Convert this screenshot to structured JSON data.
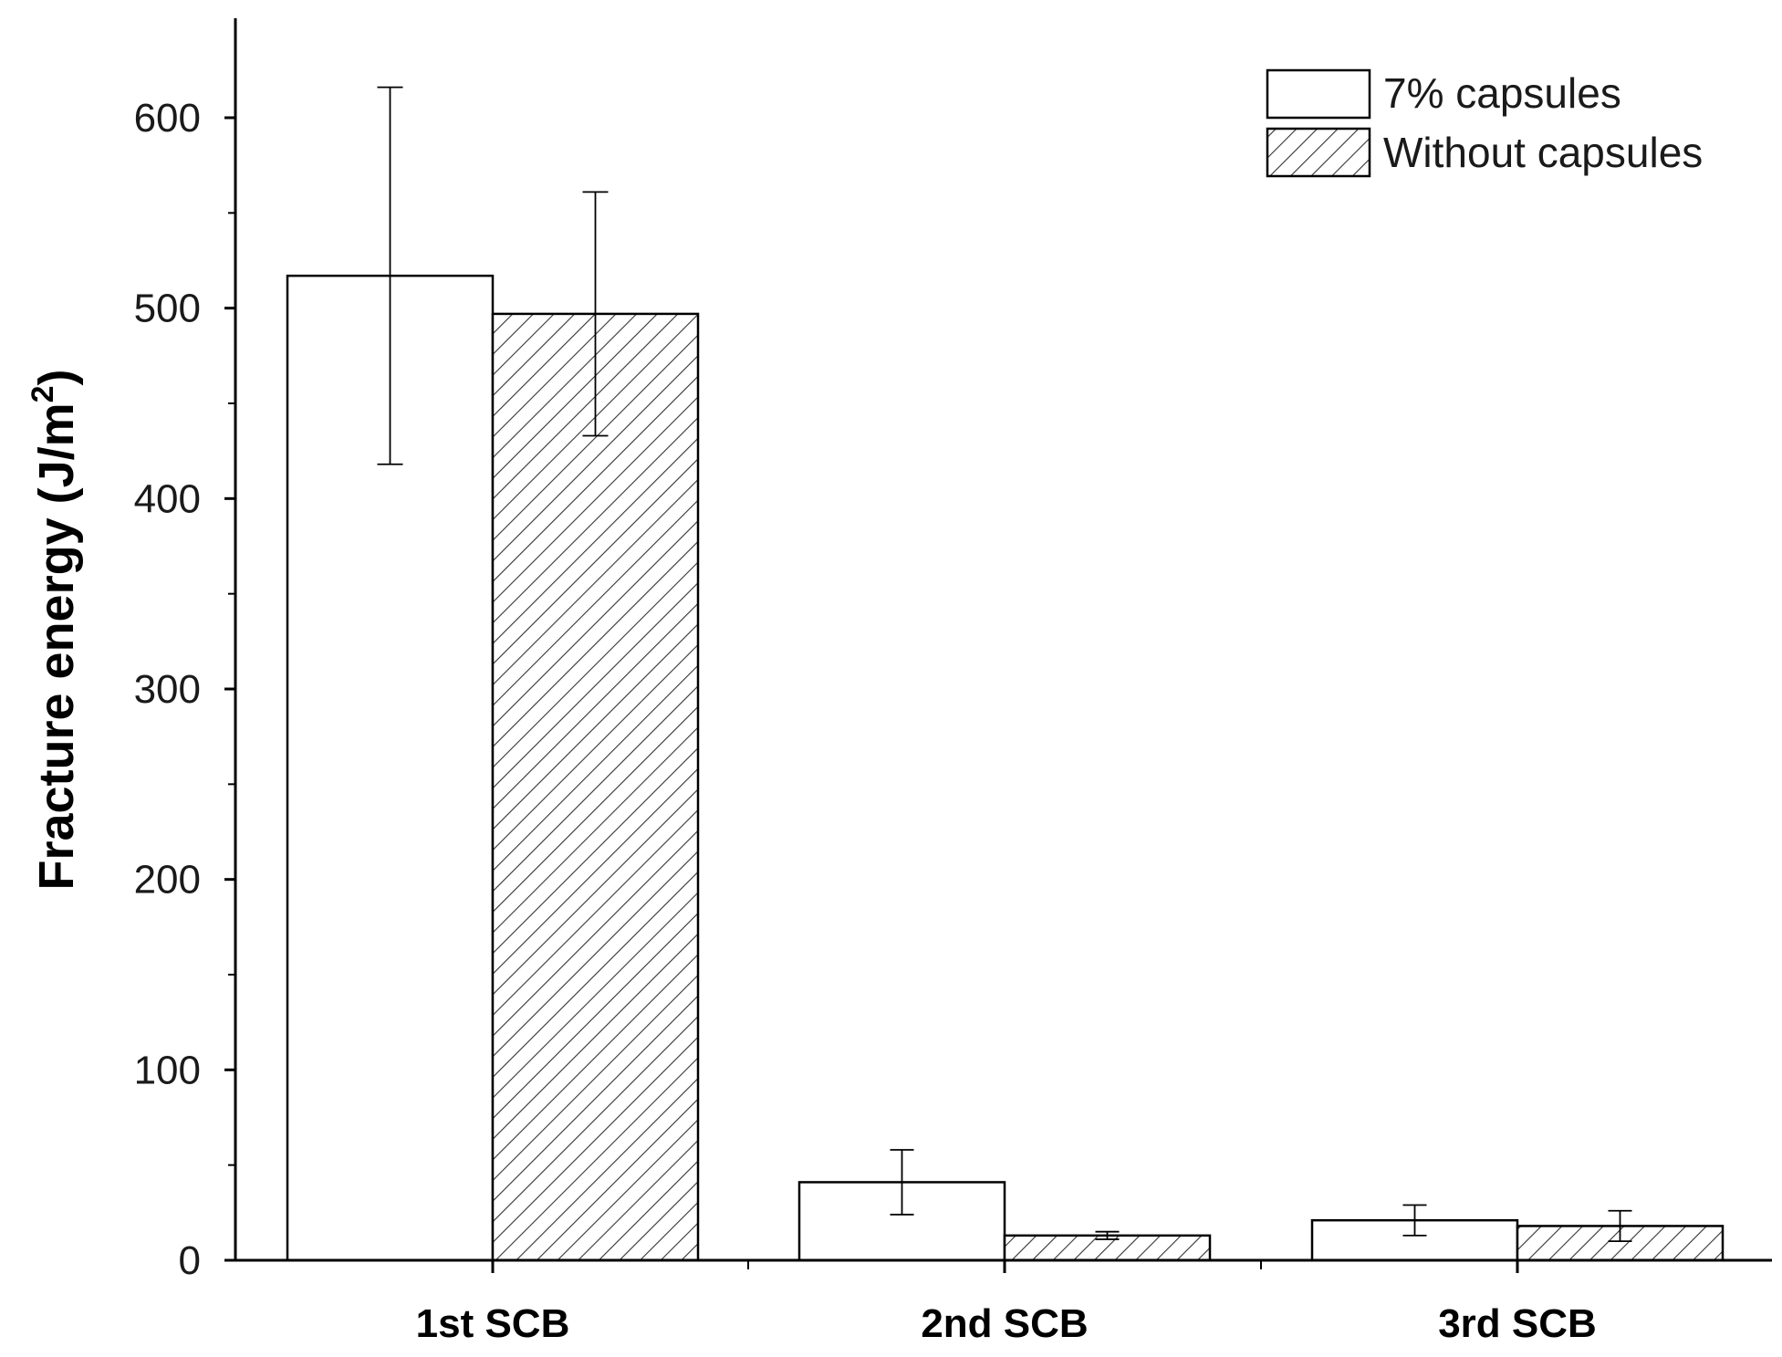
{
  "chart_data": {
    "type": "bar",
    "categories": [
      "1st SCB",
      "2nd SCB",
      "3rd SCB"
    ],
    "series": [
      {
        "name": "7% capsules",
        "values": [
          517,
          41,
          21
        ],
        "errors": [
          99,
          17,
          8
        ],
        "pattern": "none"
      },
      {
        "name": "Without capsules",
        "values": [
          497,
          13,
          18
        ],
        "errors": [
          64,
          2,
          8
        ],
        "pattern": "diagonal-hatch"
      }
    ],
    "ylabel_main": "Fracture energy (J/m",
    "ylabel_sup": "2",
    "ylabel_end": ")",
    "xlabel": "",
    "ylim": [
      0,
      650
    ],
    "yticks": [
      "0",
      "100",
      "200",
      "300",
      "400",
      "500",
      "600"
    ],
    "ytick_values": [
      0,
      100,
      200,
      300,
      400,
      500,
      600
    ],
    "legend_position": "top-right",
    "grid": false
  }
}
